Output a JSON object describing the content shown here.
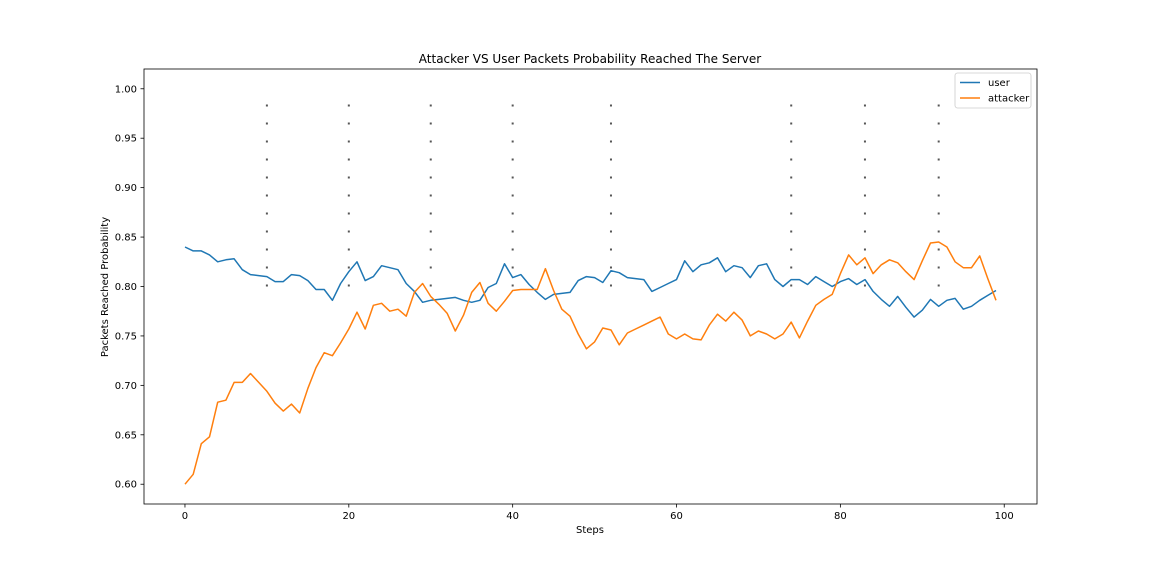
{
  "chart_data": {
    "type": "line",
    "title": "Attacker VS User Packets Probability Reached The Server",
    "xlabel": "Steps",
    "ylabel": "Packets Reached Probability",
    "xlim": [
      -5,
      104
    ],
    "ylim": [
      0.58,
      1.02
    ],
    "xticks": [
      0,
      20,
      40,
      60,
      80,
      100
    ],
    "xtick_labels": [
      "0",
      "20",
      "40",
      "60",
      "80",
      "100"
    ],
    "yticks": [
      0.6,
      0.65,
      0.7,
      0.75,
      0.8,
      0.85,
      0.9,
      0.95,
      1.0
    ],
    "ytick_labels": [
      "0.60",
      "0.65",
      "0.70",
      "0.75",
      "0.80",
      "0.85",
      "0.90",
      "0.95",
      "1.00"
    ],
    "grid": false,
    "legend_position": "top-right",
    "vlines": {
      "x": [
        10,
        20,
        30,
        40,
        52,
        74,
        83,
        92
      ],
      "ymin": 0.8,
      "ymax": 0.99,
      "style": "dotted",
      "color": "#555555"
    },
    "series": [
      {
        "name": "user",
        "color": "#1f77b4",
        "x": [
          0,
          1,
          2,
          3,
          4,
          5,
          6,
          7,
          8,
          9,
          10,
          11,
          12,
          13,
          14,
          15,
          16,
          17,
          18,
          19,
          20,
          21,
          22,
          23,
          24,
          25,
          26,
          27,
          28,
          29,
          30,
          31,
          32,
          33,
          34,
          35,
          36,
          37,
          38,
          39,
          40,
          41,
          42,
          43,
          44,
          45,
          46,
          47,
          48,
          49,
          50,
          51,
          52,
          53,
          54,
          55,
          56,
          57,
          58,
          59,
          60,
          61,
          62,
          63,
          64,
          65,
          66,
          67,
          68,
          69,
          70,
          71,
          72,
          73,
          74,
          75,
          76,
          77,
          78,
          79,
          80,
          81,
          82,
          83,
          84,
          85,
          86,
          87,
          88,
          89,
          90,
          91,
          92,
          93,
          94,
          95,
          96,
          97,
          98,
          99
        ],
        "y": [
          0.84,
          0.836,
          0.836,
          0.832,
          0.825,
          0.827,
          0.828,
          0.817,
          0.812,
          0.811,
          0.81,
          0.805,
          0.805,
          0.812,
          0.811,
          0.806,
          0.797,
          0.797,
          0.786,
          0.803,
          0.815,
          0.825,
          0.806,
          0.81,
          0.821,
          0.819,
          0.817,
          0.803,
          0.795,
          0.784,
          0.786,
          0.787,
          0.788,
          0.789,
          0.786,
          0.784,
          0.786,
          0.799,
          0.803,
          0.823,
          0.809,
          0.812,
          0.802,
          0.794,
          0.787,
          0.792,
          0.793,
          0.794,
          0.806,
          0.81,
          0.809,
          0.804,
          0.816,
          0.814,
          0.809,
          0.808,
          0.807,
          0.795,
          0.799,
          0.803,
          0.807,
          0.826,
          0.815,
          0.822,
          0.824,
          0.829,
          0.815,
          0.821,
          0.819,
          0.809,
          0.821,
          0.823,
          0.807,
          0.8,
          0.807,
          0.807,
          0.802,
          0.81,
          0.805,
          0.8,
          0.805,
          0.808,
          0.802,
          0.807,
          0.795,
          0.787,
          0.78,
          0.79,
          0.779,
          0.769,
          0.776,
          0.787,
          0.78,
          0.786,
          0.788,
          0.777,
          0.78,
          0.786,
          0.791,
          0.796
        ]
      },
      {
        "name": "attacker",
        "color": "#ff7f0e",
        "x": [
          0,
          1,
          2,
          3,
          4,
          5,
          6,
          7,
          8,
          9,
          10,
          11,
          12,
          13,
          14,
          15,
          16,
          17,
          18,
          19,
          20,
          21,
          22,
          23,
          24,
          25,
          26,
          27,
          28,
          29,
          30,
          31,
          32,
          33,
          34,
          35,
          36,
          37,
          38,
          39,
          40,
          41,
          42,
          43,
          44,
          45,
          46,
          47,
          48,
          49,
          50,
          51,
          52,
          53,
          54,
          55,
          56,
          57,
          58,
          59,
          60,
          61,
          62,
          63,
          64,
          65,
          66,
          67,
          68,
          69,
          70,
          71,
          72,
          73,
          74,
          75,
          76,
          77,
          78,
          79,
          80,
          81,
          82,
          83,
          84,
          85,
          86,
          87,
          88,
          89,
          90,
          91,
          92,
          93,
          94,
          95,
          96,
          97,
          98,
          99
        ],
        "y": [
          0.6,
          0.61,
          0.641,
          0.648,
          0.683,
          0.685,
          0.703,
          0.703,
          0.712,
          0.703,
          0.694,
          0.682,
          0.674,
          0.681,
          0.672,
          0.697,
          0.718,
          0.733,
          0.73,
          0.743,
          0.757,
          0.774,
          0.757,
          0.781,
          0.783,
          0.775,
          0.777,
          0.77,
          0.794,
          0.803,
          0.79,
          0.782,
          0.773,
          0.755,
          0.771,
          0.794,
          0.804,
          0.783,
          0.775,
          0.785,
          0.796,
          0.797,
          0.797,
          0.797,
          0.818,
          0.796,
          0.777,
          0.77,
          0.752,
          0.737,
          0.744,
          0.758,
          0.756,
          0.741,
          0.753,
          0.757,
          0.761,
          0.765,
          0.769,
          0.752,
          0.747,
          0.752,
          0.747,
          0.746,
          0.761,
          0.772,
          0.765,
          0.774,
          0.766,
          0.75,
          0.755,
          0.752,
          0.747,
          0.752,
          0.764,
          0.748,
          0.765,
          0.781,
          0.787,
          0.792,
          0.813,
          0.832,
          0.822,
          0.829,
          0.813,
          0.822,
          0.827,
          0.824,
          0.815,
          0.807,
          0.826,
          0.844,
          0.845,
          0.84,
          0.825,
          0.819,
          0.819,
          0.831,
          0.808,
          0.786
        ]
      }
    ]
  }
}
